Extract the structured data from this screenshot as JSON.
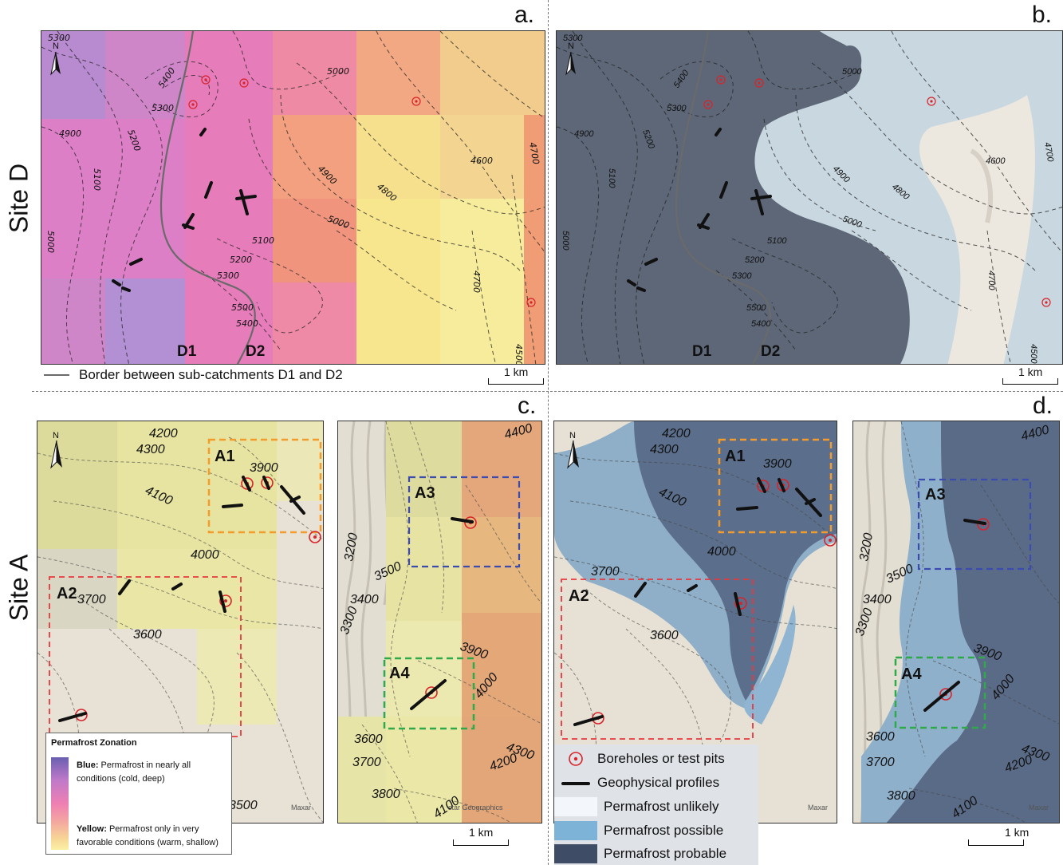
{
  "panels": {
    "a": "a.",
    "b": "b.",
    "c": "c.",
    "d": "d."
  },
  "sites": {
    "site_d": "Site D",
    "site_a": "Site A"
  },
  "site_d_map": {
    "contours": [
      "5300",
      "5400",
      "5300",
      "5000",
      "4900",
      "5200",
      "5100",
      "5000",
      "4900",
      "4800",
      "4600",
      "4700",
      "5000",
      "5100",
      "5200",
      "5300",
      "4700",
      "5500",
      "5400",
      "4500"
    ],
    "subcatchments": [
      "D1",
      "D2"
    ]
  },
  "site_a_map": {
    "contours_left": [
      "4200",
      "4300",
      "3900",
      "4100",
      "4000",
      "3700",
      "3600",
      "3500"
    ],
    "contours_right": [
      "4400",
      "3200",
      "3500",
      "3400",
      "3300",
      "3900",
      "4000",
      "3600",
      "3700",
      "4300",
      "4200",
      "3800",
      "4100"
    ],
    "zones": [
      "A1",
      "A2",
      "A3",
      "A4"
    ]
  },
  "attribution": {
    "maxar": "Maxar",
    "star_geographics": "star Geographics"
  },
  "scalebar_label": "1 km",
  "border_legend": {
    "label": "Border between sub-catchments D1 and D2"
  },
  "pz_legend": {
    "title": "Permafrost Zonation",
    "blue_bold": "Blue:",
    "blue_text": " Permafrost in nearly all conditions (cold, deep)",
    "yellow_bold": "Yellow:",
    "yellow_text": " Permafrost only in very favorable conditions (warm, shallow)"
  },
  "zone_legend": {
    "boreholes": "Boreholes or test pits",
    "profiles": "Geophysical profiles",
    "unlikely": "Permafrost unlikely",
    "possible": "Permafrost possible",
    "probable": "Permafrost probable"
  },
  "colors": {
    "unlikely": "#f3f7fb",
    "possible": "#7eb3d8",
    "probable": "#3e4d65",
    "borehole": "#d8232a",
    "box_a1": "#f39c2b",
    "box_a2": "#e8383d",
    "box_a3": "#3b4bb0",
    "box_a4": "#2eaa4a"
  }
}
